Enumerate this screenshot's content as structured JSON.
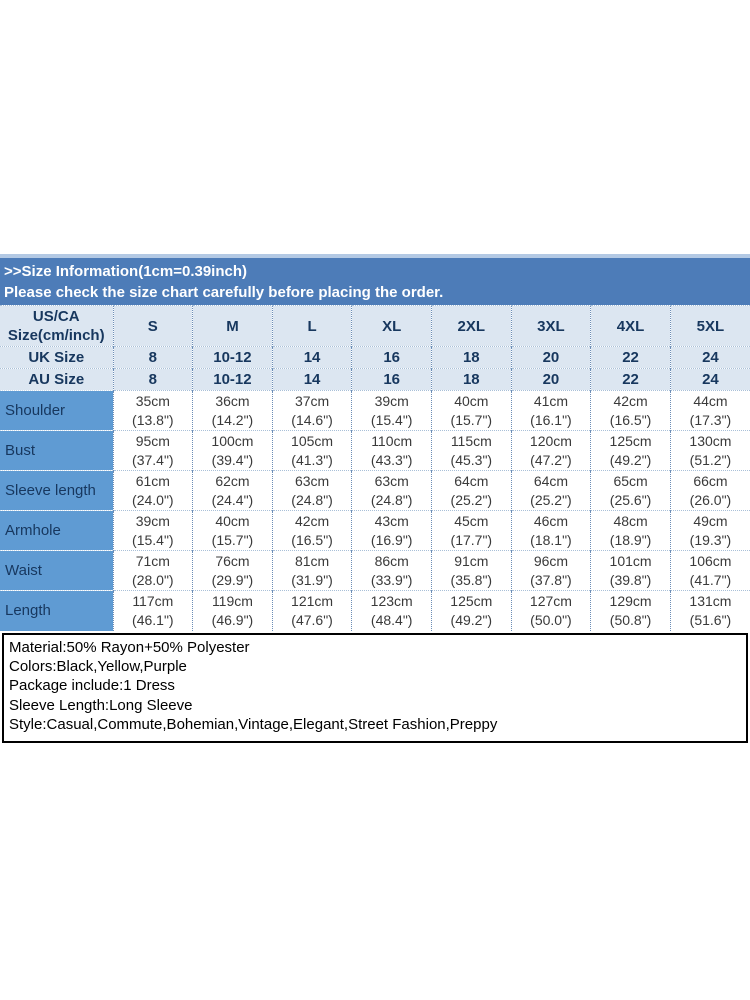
{
  "colors": {
    "band_blue": "#4d7cb8",
    "strip_blue": "#b3c9e4",
    "header_row_blue": "#dce6f1",
    "label_col_blue": "#5f9bd3",
    "header_text_navy": "#17375e",
    "border_black": "#000000"
  },
  "header": {
    "title": ">>Size Information(1cm=0.39inch)",
    "subtitle": "Please check the size chart carefully before placing the order."
  },
  "size_table": {
    "corner_label": "US/CA\nSize(cm/inch)",
    "sizes": [
      "S",
      "M",
      "L",
      "XL",
      "2XL",
      "3XL",
      "4XL",
      "5XL"
    ],
    "conversion_rows": [
      {
        "label": "UK Size",
        "values": [
          "8",
          "10-12",
          "14",
          "16",
          "18",
          "20",
          "22",
          "24"
        ]
      },
      {
        "label": "AU Size",
        "values": [
          "8",
          "10-12",
          "14",
          "16",
          "18",
          "20",
          "22",
          "24"
        ]
      }
    ],
    "measurement_rows": [
      {
        "label": "Shoulder",
        "values": [
          "35cm\n(13.8\")",
          "36cm\n(14.2\")",
          "37cm\n(14.6\")",
          "39cm\n(15.4\")",
          "40cm\n(15.7\")",
          "41cm\n(16.1\")",
          "42cm\n(16.5\")",
          "44cm\n(17.3\")"
        ]
      },
      {
        "label": "Bust",
        "values": [
          "95cm\n(37.4\")",
          "100cm\n(39.4\")",
          "105cm\n(41.3\")",
          "110cm\n(43.3\")",
          "115cm\n(45.3\")",
          "120cm\n(47.2\")",
          "125cm\n(49.2\")",
          "130cm\n(51.2\")"
        ]
      },
      {
        "label": "Sleeve length",
        "values": [
          "61cm\n(24.0\")",
          "62cm\n(24.4\")",
          "63cm\n(24.8\")",
          "63cm\n(24.8\")",
          "64cm\n(25.2\")",
          "64cm\n(25.2\")",
          "65cm\n(25.6\")",
          "66cm\n(26.0\")"
        ]
      },
      {
        "label": "Armhole",
        "values": [
          "39cm\n(15.4\")",
          "40cm\n(15.7\")",
          "42cm\n(16.5\")",
          "43cm\n(16.9\")",
          "45cm\n(17.7\")",
          "46cm\n(18.1\")",
          "48cm\n(18.9\")",
          "49cm\n(19.3\")"
        ]
      },
      {
        "label": "Waist",
        "values": [
          "71cm\n(28.0\")",
          "76cm\n(29.9\")",
          "81cm\n(31.9\")",
          "86cm\n(33.9\")",
          "91cm\n(35.8\")",
          "96cm\n(37.8\")",
          "101cm\n(39.8\")",
          "106cm\n(41.7\")"
        ]
      },
      {
        "label": "Length",
        "values": [
          "117cm\n(46.1\")",
          "119cm\n(46.9\")",
          "121cm\n(47.6\")",
          "123cm\n(48.4\")",
          "125cm\n(49.2\")",
          "127cm\n(50.0\")",
          "129cm\n(50.8\")",
          "131cm\n(51.6\")"
        ]
      }
    ]
  },
  "product_info": {
    "lines": [
      "Material:50% Rayon+50% Polyester",
      "Colors:Black,Yellow,Purple",
      "Package include:1 Dress",
      "Sleeve Length:Long Sleeve",
      "Style:Casual,Commute,Bohemian,Vintage,Elegant,Street Fashion,Preppy"
    ]
  }
}
